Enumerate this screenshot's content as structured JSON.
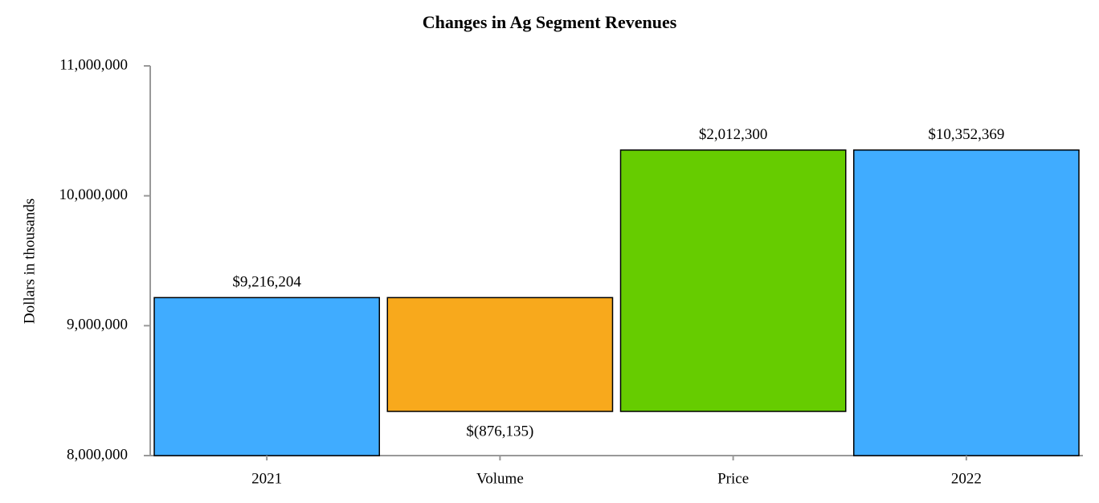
{
  "chart_data": {
    "type": "waterfall",
    "title": "Changes in Ag Segment Revenues",
    "y_label": "Dollars in thousands",
    "categories": [
      "2021",
      "Volume",
      "Price",
      "2022"
    ],
    "values": [
      9216204,
      -876135,
      2012300,
      10352369
    ],
    "value_labels": [
      "$9,216,204",
      "$(876,135)",
      "$2,012,300",
      "$10,352,369"
    ],
    "measures": [
      "absolute",
      "relative",
      "relative",
      "total"
    ],
    "colors": [
      "#40acff",
      "#f8a91c",
      "#66cc00",
      "#40acff"
    ],
    "ylim": [
      8000000,
      11000000
    ],
    "yticks": [
      {
        "value": 8000000,
        "label": "8,000,000"
      },
      {
        "value": 9000000,
        "label": "9,000,000"
      },
      {
        "value": 10000000,
        "label": "10,000,000"
      },
      {
        "value": 11000000,
        "label": "11,000,000"
      }
    ]
  }
}
